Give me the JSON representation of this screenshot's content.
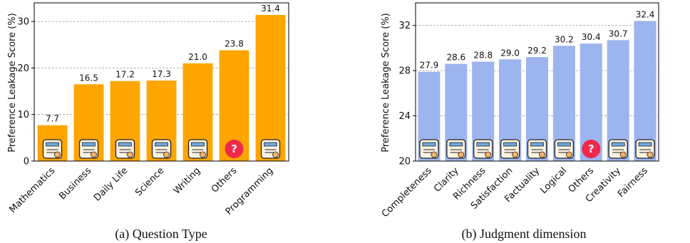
{
  "colors": {
    "panel_a_bar": "#ffa500",
    "panel_b_bar": "#9db5ee",
    "others_icon": "#f0284a"
  },
  "chart_data": [
    {
      "type": "bar",
      "caption": "(a)  Question Type",
      "ylabel": "Preference Leakage Score (%)",
      "xlabel": "",
      "categories": [
        "Mathematics",
        "Business",
        "Daily Life",
        "Science",
        "Writing",
        "Others",
        "Programming"
      ],
      "values": [
        7.7,
        16.5,
        17.2,
        17.3,
        21.0,
        23.8,
        31.4
      ],
      "value_labels": [
        "7.7",
        "16.5",
        "17.2",
        "17.3",
        "21.0",
        "23.8",
        "31.4"
      ],
      "category_icons": [
        "sine-formula-icon",
        "handshake-briefcase-icon",
        "pie-chart-money-icon",
        "lab-flask-icon",
        "writing-bulb-icon",
        "question-mark-icon",
        "code-window-icon"
      ],
      "ylim": [
        0,
        34
      ],
      "yticks": [
        0,
        10,
        20,
        30
      ],
      "grid": "horizontal-dashed",
      "color": "#ffa500"
    },
    {
      "type": "bar",
      "caption": "(b)  Judgment dimension",
      "ylabel": "Preference Leakage Score (%)",
      "xlabel": "",
      "categories": [
        "Completeness",
        "Clarity",
        "Richness",
        "Satisfaction",
        "Factuality",
        "Logical",
        "Others",
        "Creativity",
        "Fairness"
      ],
      "values": [
        27.9,
        28.6,
        28.8,
        29.0,
        29.2,
        30.2,
        30.4,
        30.7,
        32.4
      ],
      "value_labels": [
        "27.9",
        "28.6",
        "28.8",
        "29.0",
        "29.2",
        "30.2",
        "30.4",
        "30.7",
        "32.4"
      ],
      "category_icons": [
        "clipboard-check-icon",
        "bulb-magnifier-icon",
        "document-stack-icon",
        "survey-form-icon",
        "fact-document-icon",
        "logic-gears-icon",
        "question-mark-icon",
        "creative-head-icon",
        "balance-scale-icon"
      ],
      "ylim": [
        20,
        34
      ],
      "yticks": [
        20,
        24,
        28,
        32
      ],
      "grid": "horizontal-dashed",
      "color": "#9db5ee"
    }
  ]
}
